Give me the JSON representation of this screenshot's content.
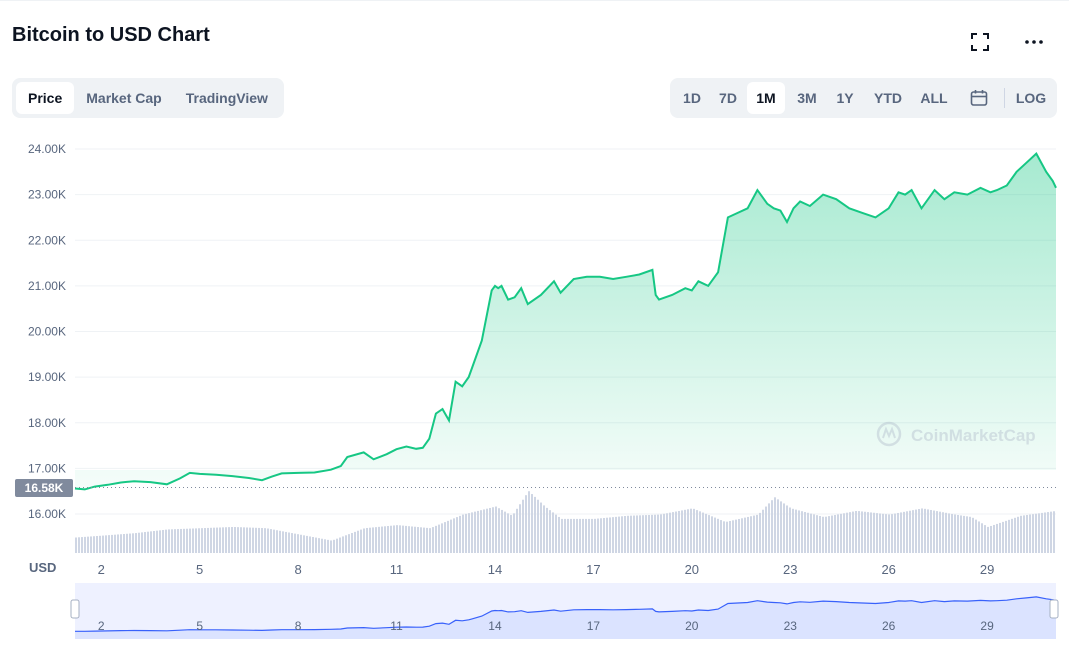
{
  "header": {
    "title": "Bitcoin to USD Chart"
  },
  "tabs": [
    {
      "label": "Price",
      "active": true
    },
    {
      "label": "Market Cap",
      "active": false
    },
    {
      "label": "TradingView",
      "active": false
    }
  ],
  "ranges": {
    "items": [
      {
        "label": "1D",
        "active": false
      },
      {
        "label": "7D",
        "active": false
      },
      {
        "label": "1M",
        "active": true
      },
      {
        "label": "3M",
        "active": false
      },
      {
        "label": "1Y",
        "active": false
      },
      {
        "label": "YTD",
        "active": false
      },
      {
        "label": "ALL",
        "active": false
      }
    ],
    "calendar_icon": "calendar-icon",
    "log_label": "LOG"
  },
  "icons": {
    "fullscreen": "fullscreen-icon",
    "more": "more-icon"
  },
  "colors": {
    "line": "#16c784",
    "navigator_line": "#3861fb",
    "volume": "#cfd6e4",
    "price_tag": "#808a9d",
    "text": "#58667e"
  },
  "chart_data": {
    "type": "area",
    "currency_label": "USD",
    "y_ticks": [
      "24.00K",
      "23.00K",
      "22.00K",
      "21.00K",
      "20.00K",
      "19.00K",
      "18.00K",
      "17.00K",
      "16.00K"
    ],
    "y_tick_values": [
      24000,
      23000,
      22000,
      21000,
      20000,
      19000,
      18000,
      17000,
      16000
    ],
    "ylim": [
      15800,
      24400
    ],
    "x_ticks": [
      "2",
      "5",
      "8",
      "11",
      "14",
      "17",
      "20",
      "23",
      "26",
      "29"
    ],
    "x_tick_days": [
      2,
      5,
      8,
      11,
      14,
      17,
      20,
      23,
      26,
      29
    ],
    "x_range": [
      1.2,
      31.1
    ],
    "price_tag": "16.58K",
    "price_tag_value": 16580,
    "watermark": "CoinMarketCap",
    "series": [
      {
        "x": [
          1.2,
          1.5,
          1.8,
          2.2,
          2.6,
          3.0,
          3.5,
          4.0,
          4.4,
          4.7,
          5.0,
          5.5,
          6.0,
          6.5,
          6.9,
          7.2,
          7.5,
          8.0,
          8.5,
          9.0,
          9.3,
          9.5,
          10.0,
          10.3,
          10.7,
          11.0,
          11.3,
          11.6,
          11.8,
          12.0,
          12.2,
          12.4,
          12.6,
          12.8,
          13.0,
          13.2,
          13.3,
          13.6,
          13.9,
          14.0,
          14.1,
          14.2,
          14.4,
          14.6,
          14.8,
          15.0,
          15.4,
          15.8,
          16.0,
          16.4,
          16.8,
          17.2,
          17.6,
          18.0,
          18.4,
          18.8,
          18.9,
          19.0,
          19.4,
          19.8,
          20.0,
          20.2,
          20.5,
          20.8,
          21.1,
          21.4,
          21.7,
          22.0,
          22.3,
          22.5,
          22.7,
          22.9,
          23.1,
          23.3,
          23.6,
          24.0,
          24.4,
          24.8,
          25.2,
          25.6,
          26.0,
          26.3,
          26.5,
          26.7,
          27.0,
          27.4,
          27.7,
          28.0,
          28.4,
          28.8,
          29.1,
          29.3,
          29.6,
          29.9,
          30.2,
          30.5,
          30.8,
          31.0,
          31.1
        ],
        "y": [
          16560,
          16540,
          16600,
          16640,
          16690,
          16720,
          16700,
          16650,
          16780,
          16900,
          16880,
          16860,
          16830,
          16790,
          16740,
          16820,
          16890,
          16900,
          16910,
          16970,
          17050,
          17250,
          17350,
          17200,
          17310,
          17420,
          17480,
          17430,
          17450,
          17650,
          18200,
          18300,
          18050,
          18900,
          18800,
          19000,
          19200,
          19800,
          20900,
          21000,
          20950,
          21000,
          20700,
          20750,
          20950,
          20600,
          20800,
          21100,
          20850,
          21150,
          21200,
          21200,
          21150,
          21200,
          21250,
          21350,
          20800,
          20700,
          20800,
          20950,
          20900,
          21100,
          21000,
          21300,
          22500,
          22600,
          22700,
          23100,
          22800,
          22700,
          22650,
          22400,
          22700,
          22850,
          22750,
          23000,
          22900,
          22700,
          22600,
          22500,
          22700,
          23050,
          23000,
          23100,
          22700,
          23100,
          22900,
          23050,
          23000,
          23150,
          23050,
          23100,
          23200,
          23500,
          23700,
          23900,
          23500,
          23300,
          23150
        ]
      }
    ],
    "volume": {
      "x": [
        1.2,
        2.0,
        3.0,
        4.0,
        5.0,
        6.0,
        7.0,
        8.0,
        9.0,
        10.0,
        11.0,
        12.0,
        13.0,
        14.0,
        14.5,
        15.0,
        15.5,
        16.0,
        17.0,
        18.0,
        19.0,
        20.0,
        21.0,
        22.0,
        22.5,
        23.0,
        24.0,
        25.0,
        26.0,
        27.0,
        28.0,
        28.5,
        29.0,
        30.0,
        31.1
      ],
      "rel": [
        0.25,
        0.28,
        0.32,
        0.38,
        0.4,
        0.42,
        0.4,
        0.3,
        0.2,
        0.4,
        0.45,
        0.4,
        0.62,
        0.75,
        0.6,
        1.0,
        0.75,
        0.55,
        0.55,
        0.6,
        0.62,
        0.72,
        0.5,
        0.62,
        0.9,
        0.72,
        0.58,
        0.68,
        0.62,
        0.72,
        0.62,
        0.58,
        0.42,
        0.6,
        0.68
      ]
    },
    "navigator": {
      "x_ticks": [
        "2",
        "5",
        "8",
        "11",
        "14",
        "17",
        "20",
        "23",
        "26",
        "29"
      ]
    }
  }
}
